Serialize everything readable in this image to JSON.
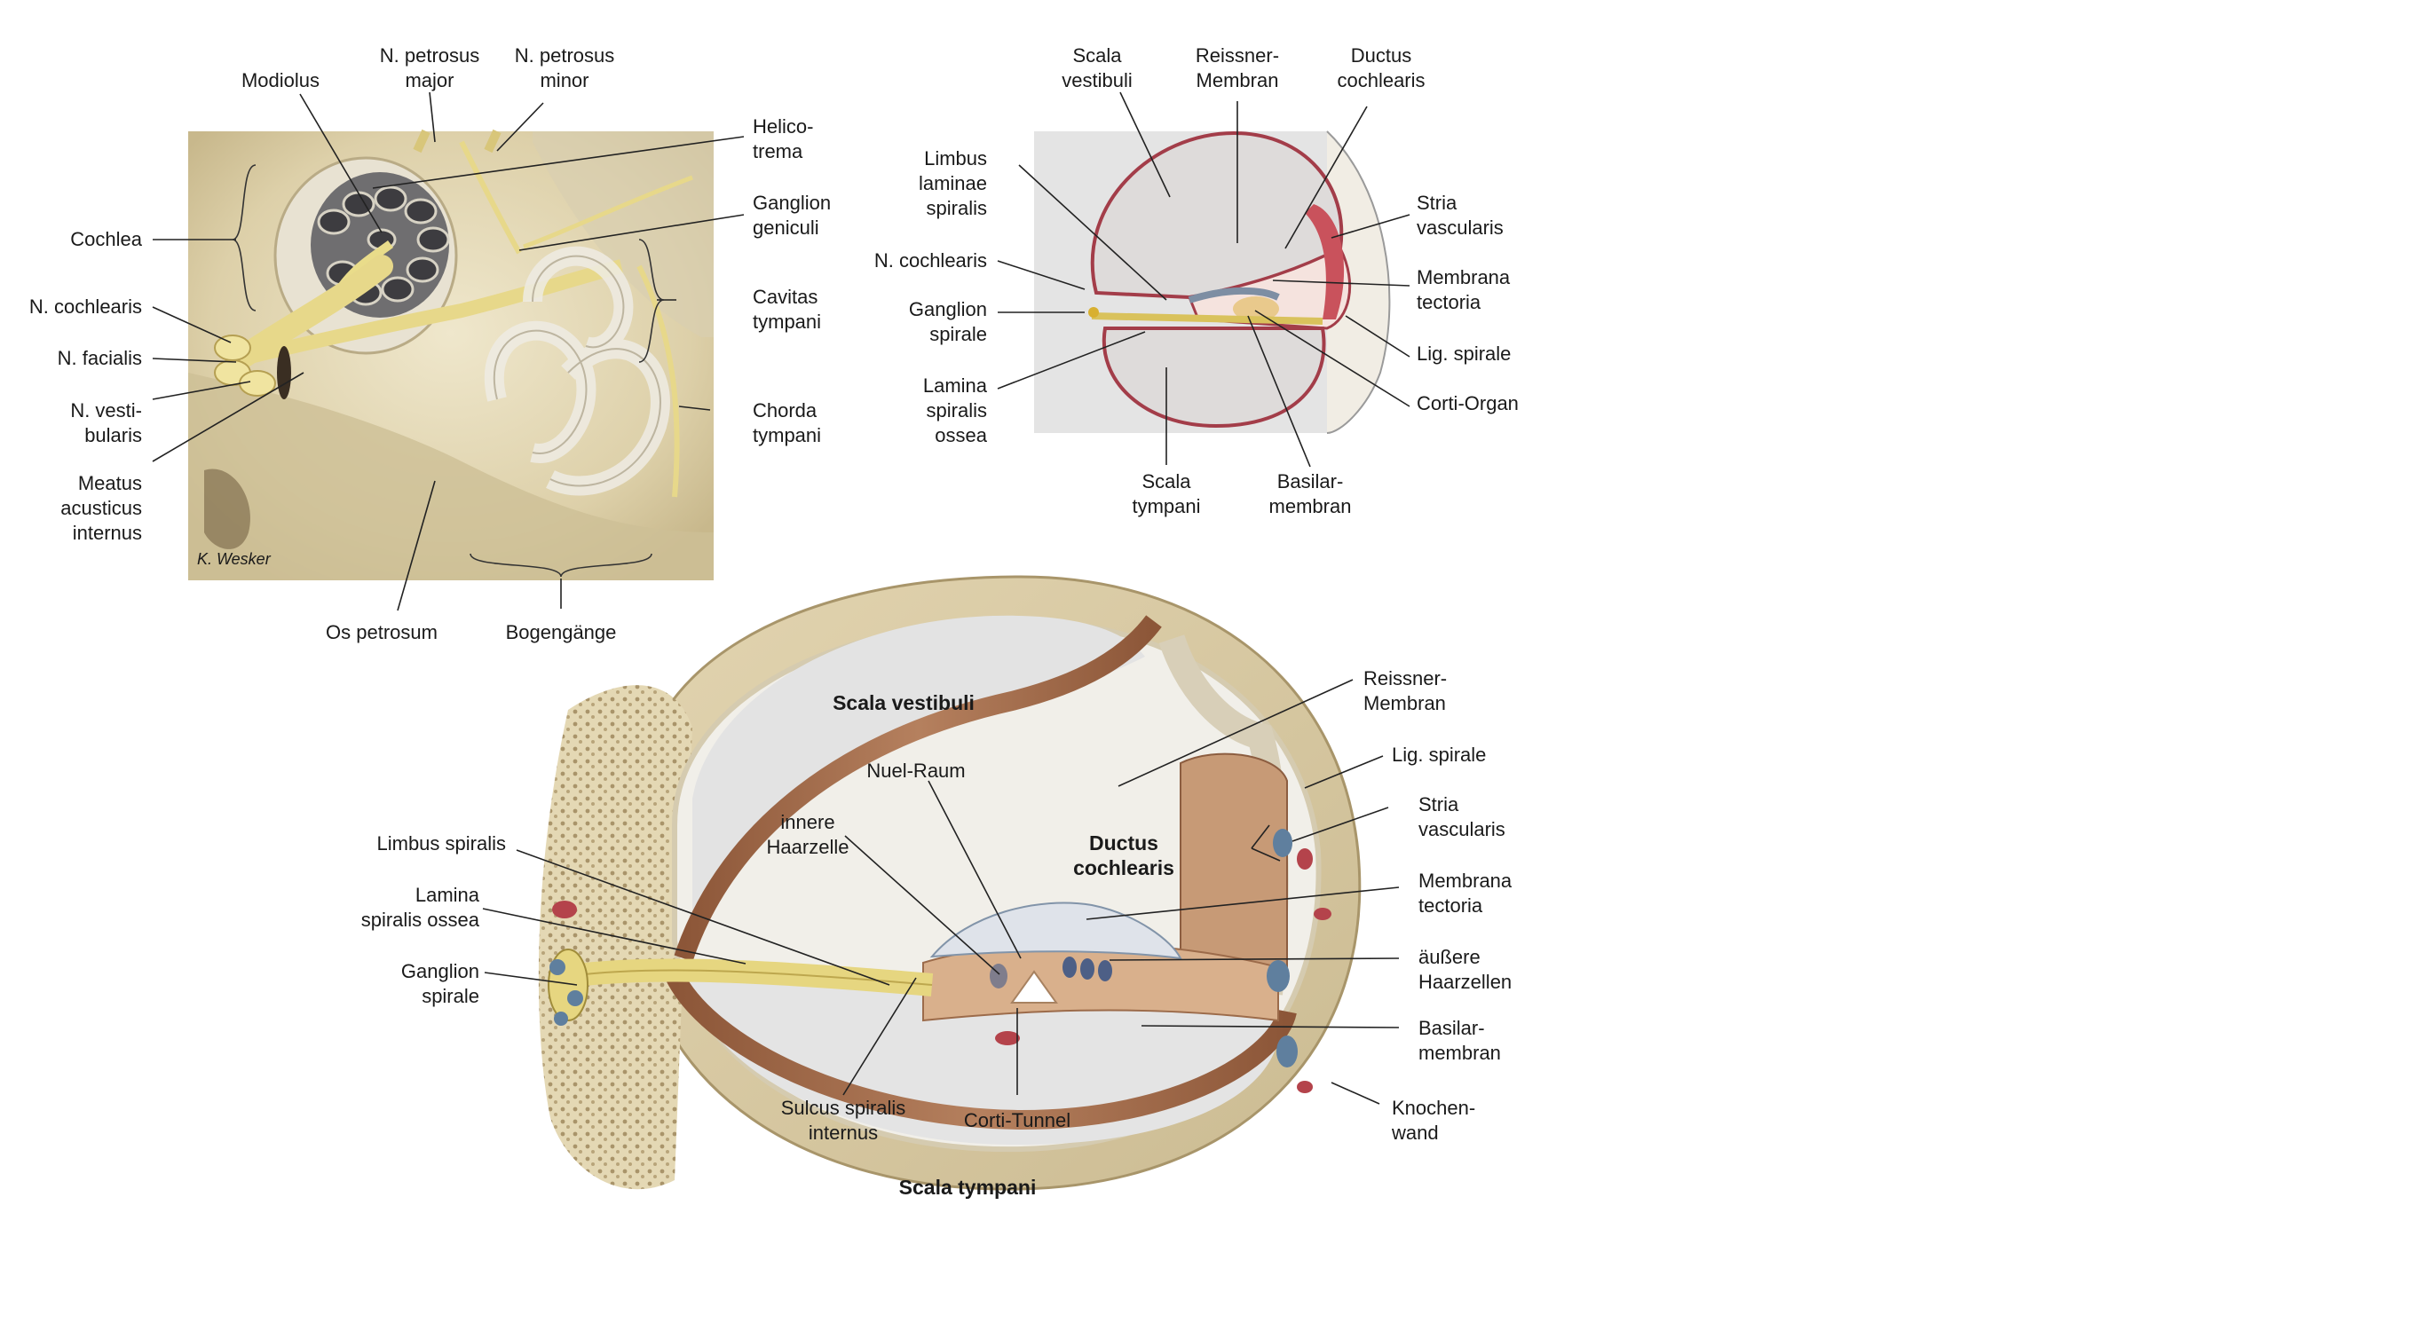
{
  "figure_a": {
    "labels": {
      "modiolus": [
        "Modiolus"
      ],
      "petrosus_major": [
        "N. petrosus",
        "major"
      ],
      "petrosus_minor": [
        "N. petrosus",
        "minor"
      ],
      "helicotrema": [
        "Helico-",
        "trema"
      ],
      "ganglion_geniculi": [
        "Ganglion",
        "geniculi"
      ],
      "cochlea": [
        "Cochlea"
      ],
      "cavitas_tympani": [
        "Cavitas",
        "tympani"
      ],
      "n_cochlearis": [
        "N. cochlearis"
      ],
      "n_facialis": [
        "N. facialis"
      ],
      "n_vestibularis": [
        "N. vesti-",
        "bularis"
      ],
      "chorda_tympani": [
        "Chorda",
        "tympani"
      ],
      "meatus": [
        "Meatus",
        "acusticus",
        "internus"
      ],
      "os_petrosum": [
        "Os petrosum"
      ],
      "bogengaenge": [
        "Bogengänge"
      ]
    },
    "signature": "K. Wesker"
  },
  "figure_b": {
    "labels": {
      "scala_vestibuli": [
        "Scala",
        "vestibuli"
      ],
      "reissner": [
        "Reissner-",
        "Membran"
      ],
      "ductus": [
        "Ductus",
        "cochlearis"
      ],
      "limbus_laminae": [
        "Limbus",
        "laminae",
        "spiralis"
      ],
      "stria": [
        "Stria",
        "vascularis"
      ],
      "n_cochlearis": [
        "N. cochlearis"
      ],
      "membrana_tectoria": [
        "Membrana",
        "tectoria"
      ],
      "ganglion_spirale": [
        "Ganglion",
        "spirale"
      ],
      "lig_spirale": [
        "Lig. spirale"
      ],
      "lamina_ossea": [
        "Lamina",
        "spiralis",
        "ossea"
      ],
      "corti_organ": [
        "Corti-Organ"
      ],
      "scala_tympani": [
        "Scala",
        "tympani"
      ],
      "basilarmembran": [
        "Basilar-",
        "membran"
      ]
    }
  },
  "figure_c": {
    "labels": {
      "scala_vestibuli": [
        "Scala vestibuli"
      ],
      "reissner": [
        "Reissner-",
        "Membran"
      ],
      "lig_spirale": [
        "Lig. spirale"
      ],
      "nuel_raum": [
        "Nuel-Raum"
      ],
      "stria": [
        "Stria",
        "vascularis"
      ],
      "innere_haarzelle": [
        "innere",
        "Haarzelle"
      ],
      "ductus": [
        "Ductus",
        "cochlearis"
      ],
      "limbus_spiralis": [
        "Limbus spiralis"
      ],
      "membrana_tectoria": [
        "Membrana",
        "tectoria"
      ],
      "lamina_ossea": [
        "Lamina",
        "spiralis ossea"
      ],
      "aeussere_haarzellen": [
        "äußere",
        "Haarzellen"
      ],
      "ganglion_spirale": [
        "Ganglion",
        "spirale"
      ],
      "basilarmembran": [
        "Basilar-",
        "membran"
      ],
      "knochenwand": [
        "Knochen-",
        "wand"
      ],
      "sulcus": [
        "Sulcus spiralis",
        "internus"
      ],
      "corti_tunnel": [
        "Corti-Tunnel"
      ],
      "scala_tympani": [
        "Scala tympani"
      ]
    }
  },
  "colors": {
    "bone": "#e6dcb9",
    "bone_dark": "#c9b98c",
    "nerve": "#e9dc8a",
    "scala_fill": "#dcdcdc",
    "duct_fill": "#f6e6e2",
    "membrane_red": "#b2414f",
    "muscle_brown": "#a0674a",
    "vessel_blue": "#5f7f9e",
    "vessel_red": "#b4434b"
  }
}
